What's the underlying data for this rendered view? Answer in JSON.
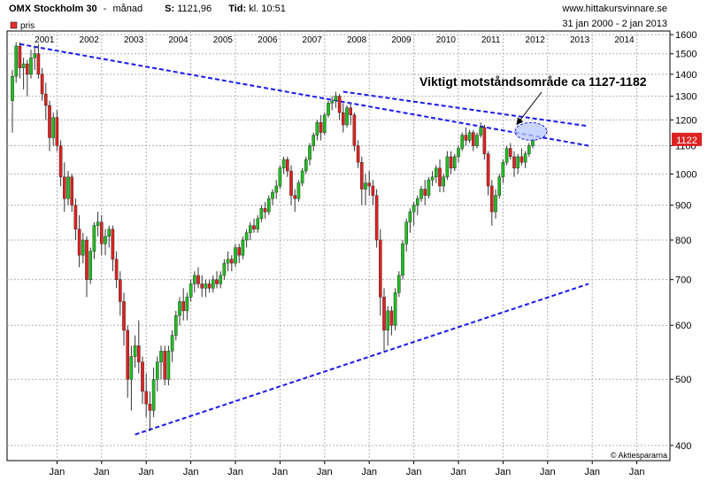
{
  "header": {
    "instrument": "OMX Stockholm 30",
    "separator": "-",
    "period": "månad",
    "last_label": "S:",
    "last_value": "1121,96",
    "time_label": "Tid:",
    "time_value": "kl. 10:51",
    "site": "www.hittakursvinnare.se",
    "date_range": "31 jan 2000 - 2 jan 2013"
  },
  "legend": {
    "label": "pris",
    "color": "#e03030"
  },
  "last_price_badge": "1122",
  "annotation": "Viktigt motståndsområde ca 1127-1182",
  "watermark": "© Aktiespararna",
  "colors": {
    "up": "#22bb22",
    "down": "#dd2222",
    "trend": "#1a1aee",
    "ellipse": "#b8c8ff"
  },
  "chart_data": {
    "type": "candlestick",
    "title": "OMX Stockholm 30",
    "y_scale": "log",
    "ylim": [
      380,
      1620
    ],
    "y_ticks": [
      400,
      500,
      600,
      700,
      800,
      900,
      1000,
      1100,
      1200,
      1300,
      1400,
      1500,
      1600
    ],
    "y_tick_labels": [
      "400",
      "500",
      "600",
      "700",
      "800",
      "900",
      "1000",
      "1100",
      "1200",
      "1300",
      "1400",
      "1500",
      "1600"
    ],
    "year_labels": [
      "2001",
      "2002",
      "2003",
      "2004",
      "2005",
      "2006",
      "2007",
      "2008",
      "2009",
      "2010",
      "2011",
      "2012",
      "2013",
      "2014"
    ],
    "month_labels": [
      "Jan",
      "Jan",
      "Jan",
      "Jan",
      "Jan",
      "Jan",
      "Jan",
      "Jan",
      "Jan",
      "Jan",
      "Jan",
      "Jan",
      "Jan",
      "Jan"
    ],
    "candles_start": "2000-01",
    "ohlc": [
      [
        1280,
        1420,
        1150,
        1390
      ],
      [
        1390,
        1560,
        1360,
        1540
      ],
      [
        1540,
        1560,
        1380,
        1430
      ],
      [
        1430,
        1480,
        1330,
        1450
      ],
      [
        1450,
        1470,
        1300,
        1400
      ],
      [
        1400,
        1520,
        1380,
        1480
      ],
      [
        1480,
        1540,
        1420,
        1500
      ],
      [
        1500,
        1550,
        1380,
        1400
      ],
      [
        1400,
        1430,
        1280,
        1310
      ],
      [
        1310,
        1360,
        1200,
        1260
      ],
      [
        1260,
        1280,
        1080,
        1130
      ],
      [
        1130,
        1230,
        1100,
        1210
      ],
      [
        1210,
        1240,
        1080,
        1100
      ],
      [
        1100,
        1120,
        960,
        990
      ],
      [
        990,
        1040,
        880,
        920
      ],
      [
        920,
        1010,
        900,
        990
      ],
      [
        990,
        1000,
        880,
        900
      ],
      [
        900,
        920,
        800,
        830
      ],
      [
        830,
        870,
        730,
        760
      ],
      [
        760,
        820,
        740,
        800
      ],
      [
        800,
        810,
        660,
        700
      ],
      [
        700,
        780,
        690,
        770
      ],
      [
        770,
        850,
        750,
        840
      ],
      [
        840,
        880,
        810,
        850
      ],
      [
        850,
        870,
        760,
        790
      ],
      [
        790,
        830,
        760,
        810
      ],
      [
        810,
        840,
        780,
        830
      ],
      [
        830,
        840,
        720,
        750
      ],
      [
        750,
        770,
        680,
        700
      ],
      [
        700,
        720,
        620,
        650
      ],
      [
        650,
        670,
        560,
        590
      ],
      [
        590,
        600,
        470,
        500
      ],
      [
        500,
        560,
        450,
        540
      ],
      [
        540,
        580,
        520,
        560
      ],
      [
        560,
        610,
        510,
        530
      ],
      [
        530,
        540,
        460,
        480
      ],
      [
        480,
        510,
        440,
        460
      ],
      [
        460,
        480,
        420,
        450
      ],
      [
        450,
        520,
        440,
        500
      ],
      [
        500,
        540,
        480,
        530
      ],
      [
        530,
        560,
        500,
        550
      ],
      [
        550,
        560,
        490,
        500
      ],
      [
        500,
        560,
        490,
        550
      ],
      [
        550,
        590,
        530,
        580
      ],
      [
        580,
        630,
        570,
        620
      ],
      [
        620,
        660,
        600,
        650
      ],
      [
        650,
        680,
        610,
        630
      ],
      [
        630,
        670,
        610,
        660
      ],
      [
        660,
        700,
        650,
        690
      ],
      [
        690,
        720,
        670,
        710
      ],
      [
        710,
        730,
        680,
        690
      ],
      [
        690,
        710,
        660,
        680
      ],
      [
        680,
        700,
        660,
        690
      ],
      [
        690,
        700,
        670,
        680
      ],
      [
        680,
        710,
        670,
        700
      ],
      [
        700,
        720,
        680,
        690
      ],
      [
        690,
        720,
        680,
        710
      ],
      [
        710,
        750,
        700,
        740
      ],
      [
        740,
        770,
        720,
        750
      ],
      [
        750,
        760,
        720,
        740
      ],
      [
        740,
        790,
        730,
        780
      ],
      [
        780,
        790,
        740,
        760
      ],
      [
        760,
        810,
        750,
        800
      ],
      [
        800,
        830,
        780,
        820
      ],
      [
        820,
        850,
        800,
        840
      ],
      [
        840,
        860,
        820,
        830
      ],
      [
        830,
        870,
        820,
        860
      ],
      [
        860,
        900,
        850,
        890
      ],
      [
        890,
        910,
        860,
        880
      ],
      [
        880,
        930,
        870,
        920
      ],
      [
        920,
        950,
        900,
        940
      ],
      [
        940,
        980,
        920,
        960
      ],
      [
        960,
        1030,
        950,
        1020
      ],
      [
        1020,
        1060,
        1000,
        1050
      ],
      [
        1050,
        1060,
        990,
        1010
      ],
      [
        1010,
        1030,
        900,
        930
      ],
      [
        930,
        950,
        880,
        920
      ],
      [
        920,
        980,
        910,
        970
      ],
      [
        970,
        1020,
        960,
        1010
      ],
      [
        1010,
        1060,
        1000,
        1050
      ],
      [
        1050,
        1110,
        1030,
        1100
      ],
      [
        1100,
        1150,
        1080,
        1140
      ],
      [
        1140,
        1200,
        1120,
        1190
      ],
      [
        1190,
        1220,
        1120,
        1150
      ],
      [
        1150,
        1230,
        1140,
        1220
      ],
      [
        1220,
        1280,
        1210,
        1270
      ],
      [
        1270,
        1300,
        1240,
        1280
      ],
      [
        1280,
        1320,
        1250,
        1300
      ],
      [
        1300,
        1310,
        1200,
        1230
      ],
      [
        1230,
        1270,
        1150,
        1180
      ],
      [
        1180,
        1260,
        1170,
        1250
      ],
      [
        1250,
        1270,
        1180,
        1220
      ],
      [
        1220,
        1230,
        1080,
        1100
      ],
      [
        1100,
        1120,
        1020,
        1040
      ],
      [
        1040,
        1060,
        900,
        950
      ],
      [
        950,
        1000,
        900,
        970
      ],
      [
        970,
        1010,
        930,
        960
      ],
      [
        960,
        980,
        900,
        930
      ],
      [
        930,
        950,
        780,
        800
      ],
      [
        800,
        830,
        620,
        660
      ],
      [
        660,
        680,
        550,
        590
      ],
      [
        590,
        640,
        560,
        630
      ],
      [
        630,
        640,
        580,
        600
      ],
      [
        600,
        680,
        590,
        670
      ],
      [
        670,
        720,
        660,
        710
      ],
      [
        710,
        800,
        700,
        790
      ],
      [
        790,
        860,
        770,
        850
      ],
      [
        850,
        890,
        820,
        880
      ],
      [
        880,
        910,
        840,
        900
      ],
      [
        900,
        930,
        870,
        920
      ],
      [
        920,
        960,
        910,
        950
      ],
      [
        950,
        980,
        900,
        930
      ],
      [
        930,
        990,
        920,
        980
      ],
      [
        980,
        1010,
        960,
        990
      ],
      [
        990,
        1030,
        970,
        1020
      ],
      [
        1020,
        1050,
        940,
        960
      ],
      [
        960,
        1000,
        940,
        990
      ],
      [
        990,
        1080,
        980,
        1060
      ],
      [
        1060,
        1080,
        1000,
        1020
      ],
      [
        1020,
        1070,
        1010,
        1060
      ],
      [
        1060,
        1100,
        1040,
        1090
      ],
      [
        1090,
        1150,
        1080,
        1140
      ],
      [
        1140,
        1170,
        1100,
        1120
      ],
      [
        1120,
        1160,
        1110,
        1150
      ],
      [
        1150,
        1160,
        1080,
        1100
      ],
      [
        1100,
        1150,
        1090,
        1140
      ],
      [
        1140,
        1190,
        1130,
        1170
      ],
      [
        1170,
        1180,
        1050,
        1070
      ],
      [
        1070,
        1080,
        930,
        960
      ],
      [
        960,
        980,
        840,
        880
      ],
      [
        880,
        950,
        860,
        930
      ],
      [
        930,
        1000,
        920,
        990
      ],
      [
        990,
        1050,
        970,
        1040
      ],
      [
        1040,
        1100,
        1030,
        1090
      ],
      [
        1090,
        1110,
        1050,
        1060
      ],
      [
        1060,
        1080,
        990,
        1020
      ],
      [
        1020,
        1070,
        1000,
        1060
      ],
      [
        1060,
        1090,
        1030,
        1040
      ],
      [
        1040,
        1080,
        1020,
        1070
      ],
      [
        1070,
        1110,
        1060,
        1100
      ],
      [
        1100,
        1130,
        1090,
        1122
      ]
    ],
    "trendlines": [
      {
        "from": [
          "2000-03",
          1550
        ],
        "to": [
          "2012-12",
          1100
        ]
      },
      {
        "from": [
          "2007-06",
          1320
        ],
        "to": [
          "2012-12",
          1175
        ]
      },
      {
        "from": [
          "2002-10",
          415
        ],
        "to": [
          "2012-12",
          690
        ]
      }
    ],
    "resistance_zone": {
      "low": 1127,
      "high": 1182,
      "label": "Viktigt motståndsområde ca 1127-1182"
    },
    "grid": true
  }
}
